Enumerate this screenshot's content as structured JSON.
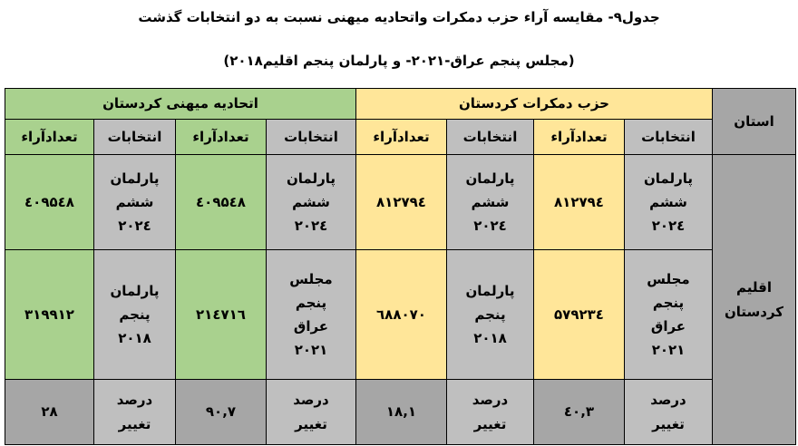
{
  "title_line1": "جدول۹- مقایسه آراء حزب دمکرات واتحادیه میهنی نسبت  به دو انتخابات گذشت",
  "title_line2": "(مجلس پنجم عراق-۲۰۲۱- و پارلمان پنجم اقلیم۲۰۱۸)",
  "colors": {
    "green": "#a9d18e",
    "yellow": "#ffe699",
    "gray": "#bfbfbf",
    "dark_gray": "#a6a6a6"
  },
  "table": {
    "province_header": "استان",
    "province": "اقلیم\nکردستان",
    "kdp_header": "حزب دمکرات کردستان",
    "puk_header": "اتحادیه میهنی کردستان",
    "col_election": "انتخابات",
    "col_votes": "تعدادآراء",
    "rows": [
      {
        "kdp": [
          {
            "election": "پارلمان\nششم\n۲۰۲٤",
            "votes": "۸۱۲۷۹٤"
          },
          {
            "election": "پارلمان\nششم\n۲۰۲٤",
            "votes": "۸۱۲۷۹٤"
          }
        ],
        "puk": [
          {
            "election": "پارلمان\nششم\n۲۰۲٤",
            "votes": "٤۰۹۵٤۸"
          },
          {
            "election": "پارلمان\nششم\n۲۰۲٤",
            "votes": "٤۰۹۵٤۸"
          }
        ]
      },
      {
        "kdp": [
          {
            "election": "مجلس\nپنجم\nعراق\n۲۰۲۱",
            "votes": "۵۷۹۲۳٤"
          },
          {
            "election": "پارلمان\nپنجم\n۲۰۱۸",
            "votes": "٦۸۸۰۷۰"
          }
        ],
        "puk": [
          {
            "election": "مجلس\nپنجم\nعراق\n۲۰۲۱",
            "votes": "۲۱٤۷۱٦"
          },
          {
            "election": "پارلمان\nپنجم\n۲۰۱۸",
            "votes": "۳۱۹۹۱۲"
          }
        ]
      },
      {
        "kdp": [
          {
            "election": "درصد\nتغییر",
            "votes": "٤۰,۳"
          },
          {
            "election": "درصد\nتغییر",
            "votes": "۱۸,۱"
          }
        ],
        "puk": [
          {
            "election": "درصد\nتغییر",
            "votes": "۹۰,۷"
          },
          {
            "election": "درصد\nتغییر",
            "votes": "۲۸"
          }
        ]
      }
    ]
  }
}
